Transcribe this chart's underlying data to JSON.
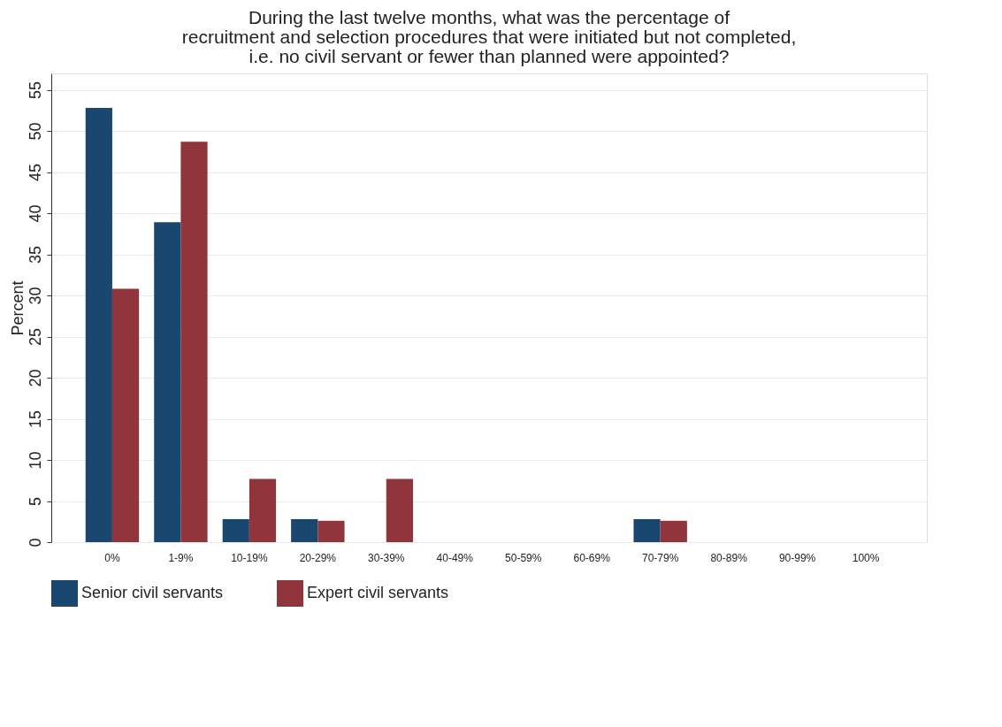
{
  "chart_data": {
    "type": "bar",
    "title": [
      "During the last twelve months, what was the percentage of",
      "recruitment and selection procedures that were initiated but not completed,",
      "i.e. no civil servant or fewer than planned were appointed?"
    ],
    "ylabel": "Percent",
    "categories": [
      "0%",
      "1-9%",
      "10-19%",
      "20-29%",
      "30-39%",
      "40-49%",
      "50-59%",
      "60-69%",
      "70-79%",
      "80-89%",
      "90-99%",
      "100%"
    ],
    "series": [
      {
        "name": "Senior civil servants",
        "color": "#1a476f",
        "values": [
          52.8,
          38.9,
          2.8,
          2.8,
          0,
          0,
          0,
          0,
          2.8,
          0,
          0,
          0
        ]
      },
      {
        "name": "Expert civil servants",
        "color": "#90353b",
        "values": [
          30.8,
          48.7,
          7.7,
          2.6,
          7.7,
          0,
          0,
          0,
          2.6,
          0,
          0,
          0
        ]
      }
    ],
    "ylim": [
      0,
      57
    ],
    "yticks": [
      0,
      5,
      10,
      15,
      20,
      25,
      30,
      35,
      40,
      45,
      50,
      55
    ],
    "grid": "y",
    "legend": "bottom"
  }
}
